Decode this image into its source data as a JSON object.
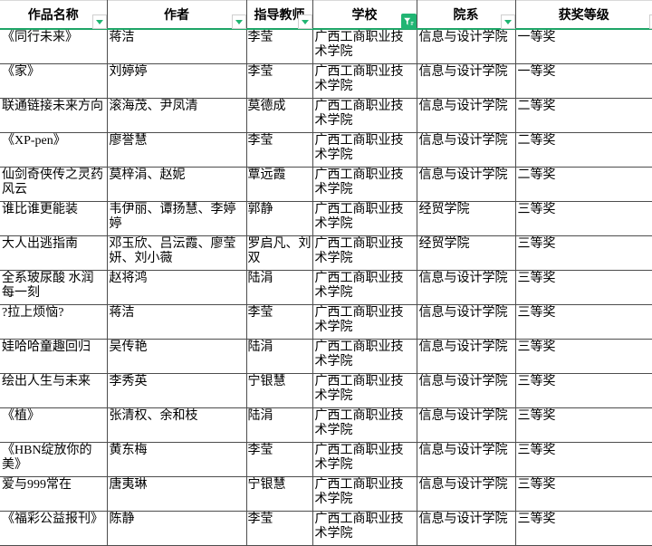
{
  "accent": {
    "header_underline_green": "#1EA567",
    "filter_triangle_green": "#21B573",
    "filter_active_bg": "#21B573",
    "grid_border": "#4D4D4D",
    "top_border": "#D9D9D9"
  },
  "icons": {
    "dropdown": "chevron-down-icon",
    "active_filter": "funnel-icon"
  },
  "table": {
    "columns": [
      {
        "key": "work",
        "label": "作品名称",
        "filter": "dropdown"
      },
      {
        "key": "author",
        "label": "作者",
        "filter": "dropdown"
      },
      {
        "key": "teacher",
        "label": "指导教师",
        "filter": "dropdown"
      },
      {
        "key": "school",
        "label": "学校",
        "filter": "active-funnel"
      },
      {
        "key": "dept",
        "label": "院系",
        "filter": "dropdown"
      },
      {
        "key": "award",
        "label": "获奖等级",
        "filter": "dropdown-clipped"
      }
    ],
    "rows": [
      [
        "《同行未来》",
        "蒋洁",
        "李莹",
        "广西工商职业技术学院",
        "信息与设计学院",
        "一等奖"
      ],
      [
        "《家》",
        "刘婷婷",
        "李莹",
        "广西工商职业技术学院",
        "信息与设计学院",
        "一等奖"
      ],
      [
        "联通链接未来方向",
        "滚海茂、尹凤清",
        "莫德成",
        "广西工商职业技术学院",
        "信息与设计学院",
        "二等奖"
      ],
      [
        "《XP-pen》",
        "廖誉慧",
        "李莹",
        "广西工商职业技术学院",
        "信息与设计学院",
        "二等奖"
      ],
      [
        "仙剑奇侠传之灵药风云",
        "莫梓涓、赵妮",
        "覃远霞",
        "广西工商职业技术学院",
        "信息与设计学院",
        "二等奖"
      ],
      [
        "谁比谁更能装",
        "韦伊丽、谭扬慧、李婷婷",
        "郭静",
        "广西工商职业技术学院",
        "经贸学院",
        "三等奖"
      ],
      [
        "大人出逃指南",
        "邓玉欣、吕沄霞、廖莹妍、刘小薇",
        "罗启凡、刘双",
        "广西工商职业技术学院",
        "经贸学院",
        "三等奖"
      ],
      [
        "全系玻尿酸 水润每一刻",
        "赵将鸿",
        "陆涓",
        "广西工商职业技术学院",
        "信息与设计学院",
        "三等奖"
      ],
      [
        "?拉上烦恼?",
        "蒋洁",
        "李莹",
        "广西工商职业技术学院",
        "信息与设计学院",
        "三等奖"
      ],
      [
        "娃哈哈童趣回归",
        "吴传艳",
        "陆涓",
        "广西工商职业技术学院",
        "信息与设计学院",
        "三等奖"
      ],
      [
        "绘出人生与未来",
        "李秀英",
        "宁银慧",
        "广西工商职业技术学院",
        "信息与设计学院",
        "三等奖"
      ],
      [
        "《植》",
        "张清权、余和枝",
        "陆涓",
        "广西工商职业技术学院",
        "信息与设计学院",
        "三等奖"
      ],
      [
        "《HBN绽放你的美》",
        "黄东梅",
        "李莹",
        "广西工商职业技术学院",
        "信息与设计学院",
        "三等奖"
      ],
      [
        "爱与999常在",
        "唐夷琳",
        "宁银慧",
        "广西工商职业技术学院",
        "信息与设计学院",
        "三等奖"
      ],
      [
        "《福彩公益报刊》",
        "陈静",
        "李莹",
        "广西工商职业技术学院",
        "信息与设计学院",
        "三等奖"
      ]
    ]
  }
}
